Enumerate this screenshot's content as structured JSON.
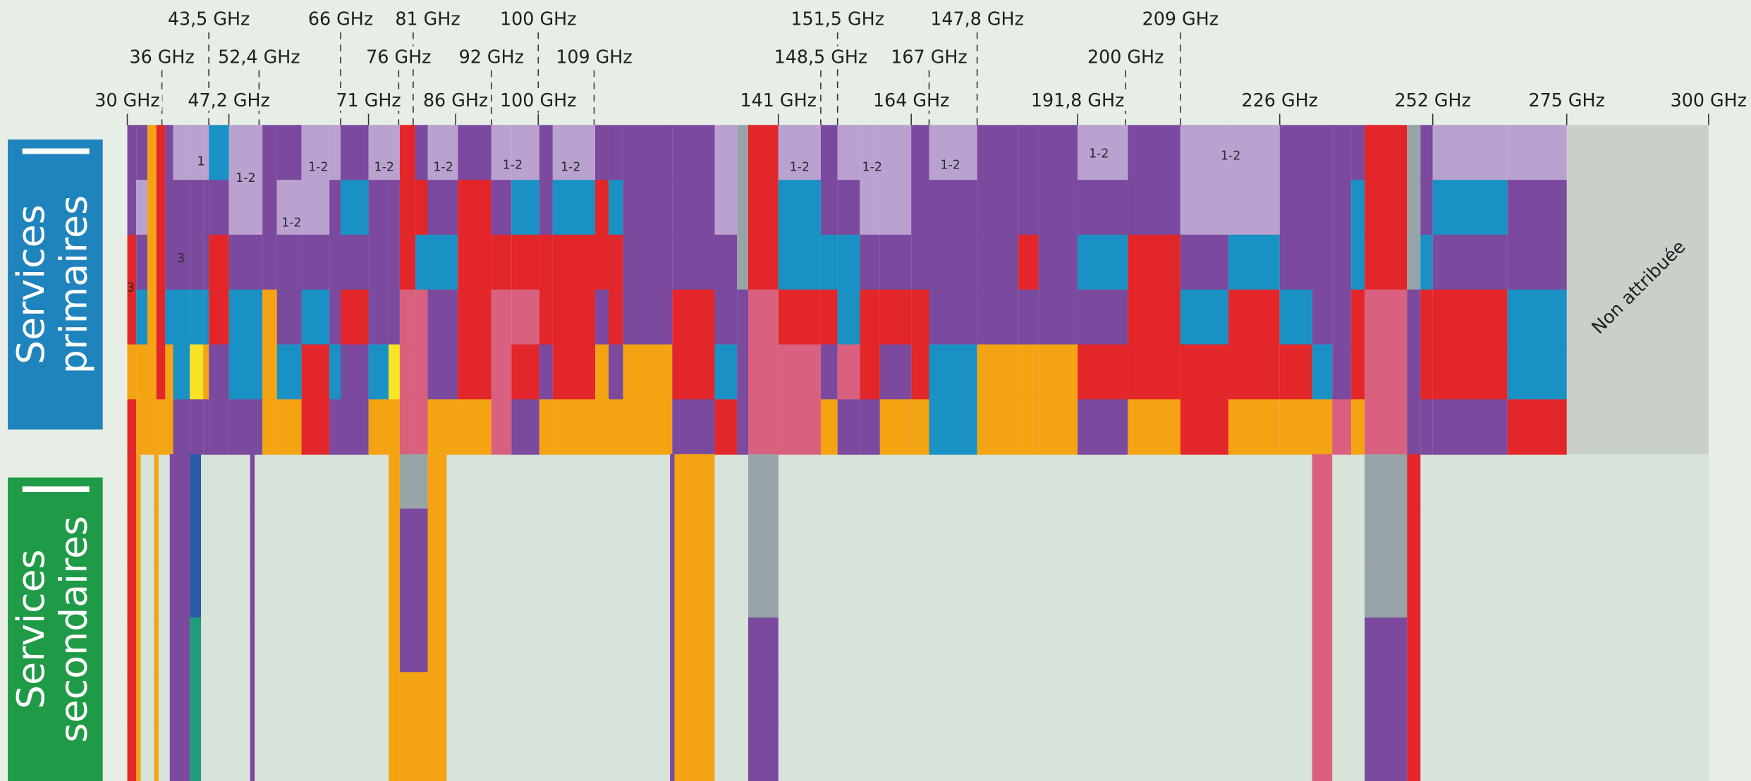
{
  "frequency_labels": {
    "row1": [
      "43,5 GHz",
      "66 GHz",
      "81 GHz",
      "100 GHz",
      "151,5 GHz",
      "147,8 GHz",
      "209 GHz"
    ],
    "row2": [
      "36 GHz",
      "52,4 GHz",
      "76 GHz",
      "92 GHz",
      "109 GHz",
      "148,5 GHz",
      "167 GHz",
      "200 GHz"
    ],
    "row3": [
      "30 GHz",
      "47,2 GHz",
      "71 GHz",
      "86 GHz",
      "100 GHz",
      "141 GHz",
      "164 GHz",
      "191,8 GHz",
      "226 GHz",
      "252 GHz",
      "275 GHz",
      "300 GHz"
    ]
  },
  "side_labels": {
    "primary": [
      "Services",
      "primaires"
    ],
    "secondary": [
      "Services",
      "secondaires"
    ]
  },
  "non_allocated": "Non attribuée",
  "band_labels": [
    "1",
    "1-2",
    "1-2",
    "1-2",
    "1-2",
    "1-2",
    "1-2",
    "1-2",
    "1-2",
    "1-2",
    "1-2",
    "1-2",
    "1-2",
    "3",
    "3"
  ]
}
